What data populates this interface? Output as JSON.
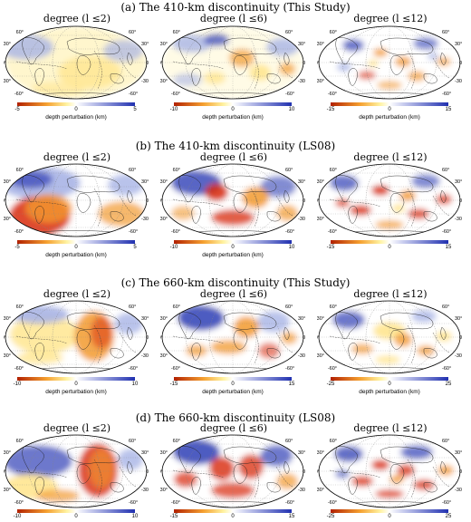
{
  "colormap": {
    "negative": "#b22000",
    "mid_neg": "#f5a030",
    "zero": "#ffffff",
    "positive": "#2030b0"
  },
  "lat_labels": {
    "n60": "60°",
    "n30": "30°",
    "eq": "0°",
    "s30": "-30°",
    "s60": "-60°"
  },
  "colorbar_title": "depth perturbation (km)",
  "sections": [
    {
      "title": "(a) The 410-km discontinuity (This Study)",
      "panels": [
        {
          "degree_label": "degree (l ≤2)",
          "ticks": [
            "-5",
            "0",
            "5"
          ],
          "range": 5,
          "pattern": "a1"
        },
        {
          "degree_label": "degree (l ≤6)",
          "ticks": [
            "-10",
            "0",
            "10"
          ],
          "range": 10,
          "pattern": "a2"
        },
        {
          "degree_label": "degree (l ≤12)",
          "ticks": [
            "-15",
            "0",
            "15"
          ],
          "range": 15,
          "pattern": "a3"
        }
      ]
    },
    {
      "title": "(b) The 410-km discontinuity (LS08)",
      "panels": [
        {
          "degree_label": "degree (l ≤2)",
          "ticks": [
            "-5",
            "0",
            "5"
          ],
          "range": 5,
          "pattern": "b1"
        },
        {
          "degree_label": "degree (l ≤6)",
          "ticks": [
            "-10",
            "0",
            "10"
          ],
          "range": 10,
          "pattern": "b2"
        },
        {
          "degree_label": "degree (l ≤12)",
          "ticks": [
            "-15",
            "0",
            "15"
          ],
          "range": 15,
          "pattern": "b3"
        }
      ]
    },
    {
      "title": "(c) The 660-km discontinuity (This Study)",
      "panels": [
        {
          "degree_label": "degree (l ≤2)",
          "ticks": [
            "-10",
            "0",
            "10"
          ],
          "range": 10,
          "pattern": "c1"
        },
        {
          "degree_label": "degree (l ≤6)",
          "ticks": [
            "-15",
            "0",
            "15"
          ],
          "range": 15,
          "pattern": "c2"
        },
        {
          "degree_label": "degree (l ≤12)",
          "ticks": [
            "-25",
            "0",
            "25"
          ],
          "range": 25,
          "pattern": "c3"
        }
      ]
    },
    {
      "title": "(d) The 660-km discontinuity (LS08)",
      "panels": [
        {
          "degree_label": "degree (l ≤2)",
          "ticks": [
            "-10",
            "0",
            "10"
          ],
          "range": 10,
          "pattern": "d1"
        },
        {
          "degree_label": "degree (l ≤6)",
          "ticks": [
            "-15",
            "0",
            "15"
          ],
          "range": 15,
          "pattern": "d2"
        },
        {
          "degree_label": "degree (l ≤12)",
          "ticks": [
            "-25",
            "0",
            "25"
          ],
          "range": 25,
          "pattern": "d3"
        }
      ]
    }
  ]
}
